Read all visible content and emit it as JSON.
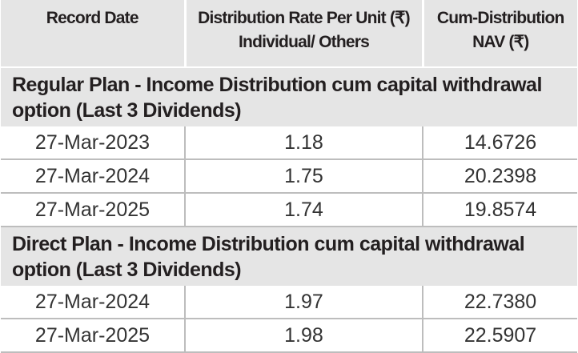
{
  "table": {
    "header": [
      [
        "Record Date"
      ],
      [
        "Distribution Rate Per Unit  (₹)",
        "Individual/ Others"
      ],
      [
        "Cum-Distribution",
        "NAV (₹)"
      ]
    ],
    "sections": [
      {
        "title": "Regular Plan - Income Distribution cum capital withdrawal option (Last 3 Dividends)",
        "rows": [
          [
            "27-Mar-2023",
            "1.18",
            "14.6726"
          ],
          [
            "27-Mar-2024",
            "1.75",
            "20.2398"
          ],
          [
            "27-Mar-2025",
            "1.74",
            "19.8574"
          ]
        ]
      },
      {
        "title": "Direct Plan - Income Distribution cum capital withdrawal option (Last 3 Dividends)",
        "rows": [
          [
            "27-Mar-2024",
            "1.97",
            "22.7380"
          ],
          [
            "27-Mar-2025",
            "1.98",
            "22.5907"
          ]
        ]
      }
    ]
  }
}
